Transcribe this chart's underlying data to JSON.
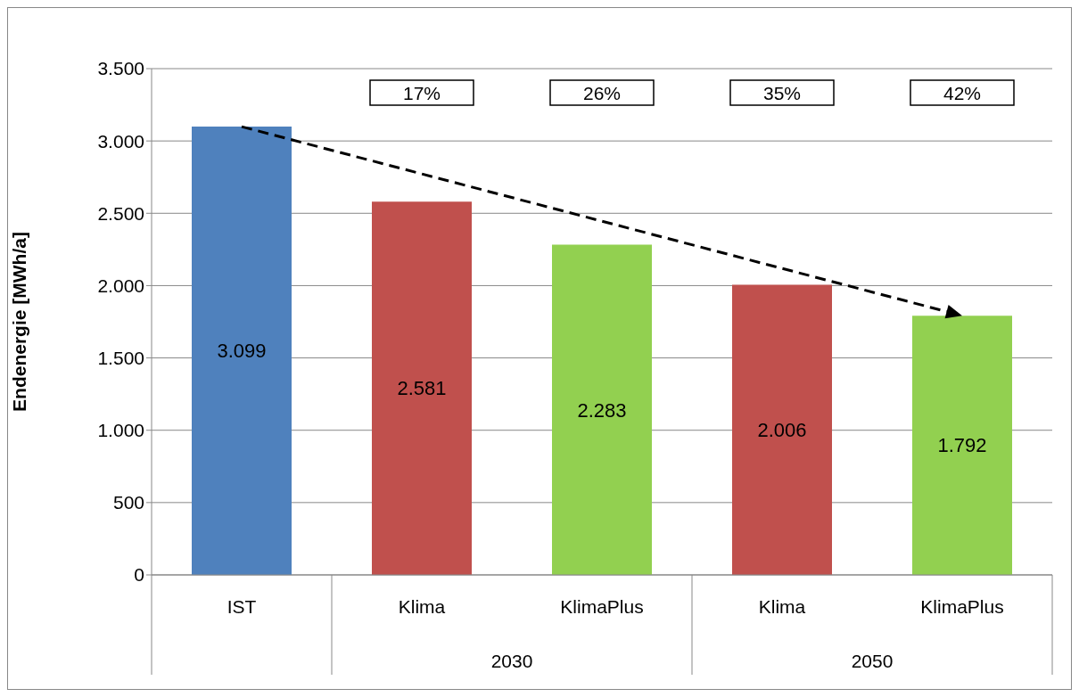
{
  "chart_data": {
    "type": "bar",
    "ylabel": "Endenergie [MWh/a]",
    "categories": [
      "IST",
      "Klima",
      "KlimaPlus",
      "Klima",
      "KlimaPlus"
    ],
    "values": [
      3099,
      2581,
      2283,
      2006,
      1792
    ],
    "value_labels": [
      "3.099",
      "2.581",
      "2.283",
      "2.006",
      "1.792"
    ],
    "colors": [
      "#4f81bd",
      "#c0504d",
      "#92d050",
      "#c0504d",
      "#92d050"
    ],
    "ylim": [
      0,
      3500
    ],
    "yticks": [
      0,
      500,
      {
        "value": 1000,
        "label": "1.000"
      },
      {
        "value": 1500,
        "label": "1.500"
      },
      {
        "value": 2000,
        "label": "2.000"
      },
      {
        "value": 2500,
        "label": "2.500"
      },
      {
        "value": 3000,
        "label": "3.000"
      },
      {
        "value": 3500,
        "label": "3.500"
      }
    ],
    "grid": "y",
    "annotations": [
      "17%",
      "26%",
      "35%",
      "42%",
      "2030",
      "2050"
    ]
  }
}
